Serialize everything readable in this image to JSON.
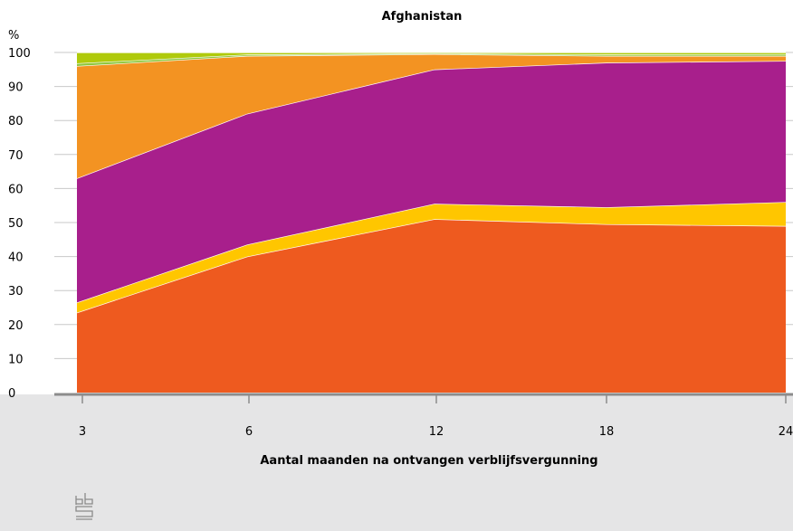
{
  "chart_data": {
    "type": "area",
    "stacked": true,
    "title": "Afghanistan",
    "y_unit": "%",
    "xlabel": "Aantal maanden na ontvangen verblijfsvergunning",
    "ylabel": "",
    "x": [
      3,
      6,
      12,
      18,
      24
    ],
    "x_tick_labels": [
      "3",
      "6",
      "12",
      "18",
      "24"
    ],
    "y_ticks": [
      0,
      10,
      20,
      30,
      40,
      50,
      60,
      70,
      80,
      90,
      100
    ],
    "ylim": [
      0,
      100
    ],
    "grid": "horizontal",
    "legend": "none",
    "series": [
      {
        "color": "#ee5a1f",
        "values": [
          23.5,
          40,
          51,
          49.5,
          49
        ]
      },
      {
        "color": "#ffc600",
        "values": [
          3,
          3.5,
          4.5,
          5,
          7
        ]
      },
      {
        "color": "#a81f8c",
        "values": [
          36.5,
          38.5,
          39.5,
          42.5,
          41.5
        ]
      },
      {
        "color": "#f39322",
        "values": [
          33,
          17,
          4.5,
          2,
          1.5
        ]
      },
      {
        "color": "#8fc73e",
        "values": [
          0.8,
          0.4,
          0.2,
          0.4,
          0.5
        ]
      },
      {
        "color": "#afca0b",
        "values": [
          3.2,
          0.6,
          0.3,
          0.6,
          0.5
        ]
      }
    ]
  },
  "footer": {
    "background": "#e5e5e6",
    "logo_icon": "cbs-logo-icon"
  }
}
